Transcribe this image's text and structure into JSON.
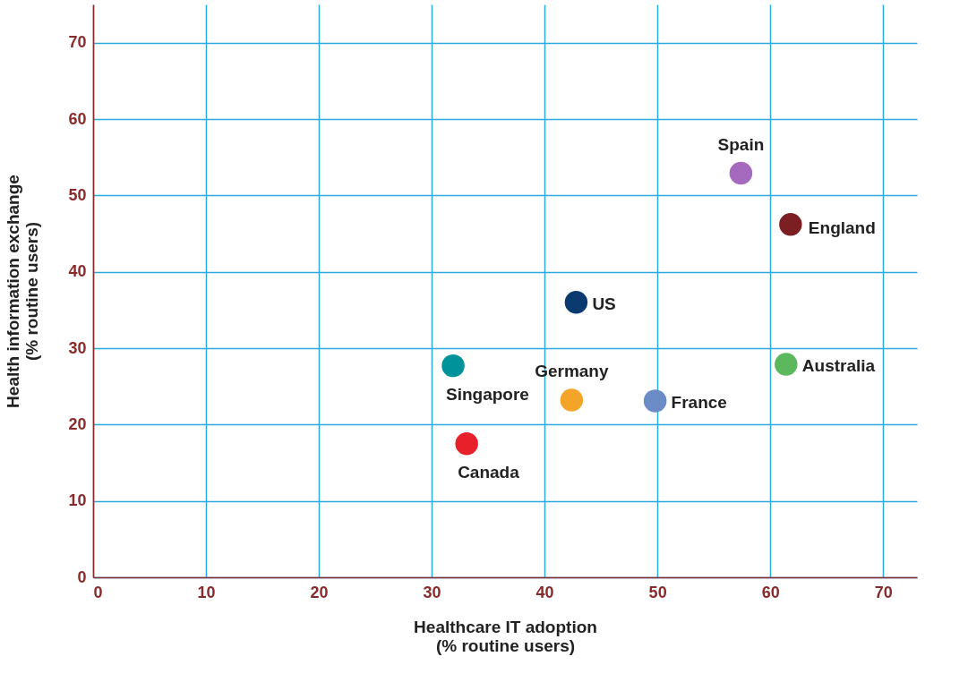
{
  "chart_data": {
    "type": "scatter",
    "xlabel": "Healthcare IT adoption\n(% routine users)",
    "ylabel": "Health information exchange\n(% routine users)",
    "xlim": [
      0,
      73
    ],
    "ylim": [
      0,
      75
    ],
    "xticks": [
      0,
      10,
      20,
      30,
      40,
      50,
      60,
      70
    ],
    "yticks": [
      0,
      10,
      20,
      30,
      40,
      50,
      60,
      70
    ],
    "grid": true,
    "series": [
      {
        "name": "Spain",
        "color": "#a569bd",
        "x": [
          57.4
        ],
        "values": [
          52.9
        ]
      },
      {
        "name": "England",
        "color": "#7b1f22",
        "x": [
          61.8
        ],
        "values": [
          46.2
        ]
      },
      {
        "name": "US",
        "color": "#0a3a70",
        "x": [
          42.8
        ],
        "values": [
          36.0
        ]
      },
      {
        "name": "Australia",
        "color": "#5cb85c",
        "x": [
          61.4
        ],
        "values": [
          27.9
        ]
      },
      {
        "name": "Singapore",
        "color": "#00929a",
        "x": [
          31.9
        ],
        "values": [
          27.7
        ]
      },
      {
        "name": "Germany",
        "color": "#f5a42a",
        "x": [
          42.4
        ],
        "values": [
          23.2
        ]
      },
      {
        "name": "France",
        "color": "#6b8cc7",
        "x": [
          49.8
        ],
        "values": [
          23.1
        ]
      },
      {
        "name": "Canada",
        "color": "#e8202a",
        "x": [
          33.1
        ],
        "values": [
          17.5
        ]
      }
    ]
  }
}
